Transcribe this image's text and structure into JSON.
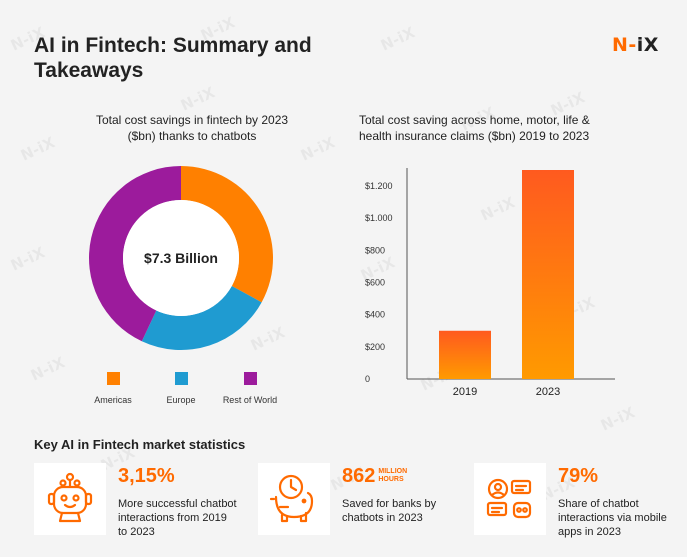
{
  "header": {
    "title": "AI in Fintech: Summary and Takeaways",
    "logo_n": "N",
    "logo_dash": "-",
    "logo_ix": "iX",
    "watermark": "N-iX"
  },
  "colors": {
    "orange": "#ff8000",
    "blue": "#1f9bd1",
    "purple": "#9c1b9c",
    "bar_gradient_top": "#ff5a1f",
    "bar_gradient_bottom": "#ff9a00"
  },
  "chart_data": [
    {
      "type": "pie",
      "title": "Total cost savings in fintech by 2023 ($bn) thanks to chatbots",
      "center_label": "$7.3 Billion",
      "categories": [
        "Americas",
        "Europe",
        "Rest of World"
      ],
      "values": [
        33,
        24,
        43
      ],
      "colors": [
        "#ff8000",
        "#1f9bd1",
        "#9c1b9c"
      ],
      "legend": "bottom"
    },
    {
      "type": "bar",
      "title": "Total cost saving across home, motor, life & health insurance claims ($bn) 2019 to 2023",
      "categories": [
        "2019",
        "2023"
      ],
      "values": [
        300,
        1300
      ],
      "ylim": [
        0,
        1300
      ],
      "yticks": [
        0,
        200,
        400,
        600,
        800,
        1000,
        1200
      ],
      "ytick_labels": [
        "0",
        "$200",
        "$400",
        "$600",
        "$800",
        "$1.000",
        "$1.200"
      ],
      "xlabel": "",
      "ylabel": ""
    }
  ],
  "stats": {
    "heading": "Key AI in Fintech market statistics",
    "items": [
      {
        "value": "3,15%",
        "unit": "",
        "desc": "More successful chatbot interactions from 2019 to 2023",
        "icon": "robot-icon"
      },
      {
        "value": "862",
        "unit": "MILLION HOURS",
        "desc": "Saved for banks by chatbots in 2023",
        "icon": "piggy-bank-clock-icon"
      },
      {
        "value": "79%",
        "unit": "",
        "desc": "Share of chatbot interactions via mobile apps in 2023",
        "icon": "chat-users-icon"
      }
    ]
  }
}
